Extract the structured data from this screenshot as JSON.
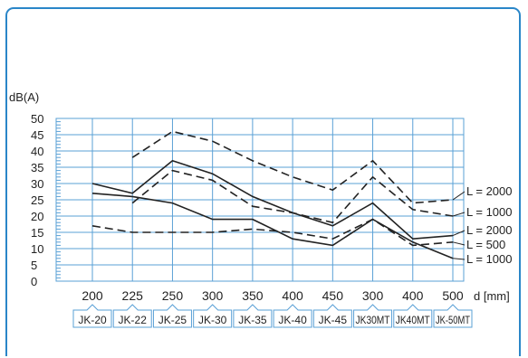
{
  "chart_data": {
    "type": "line",
    "ylabel": "dB(A)",
    "xlabel": "d [mm]",
    "ylim": [
      0,
      50
    ],
    "yticks": [
      0,
      5,
      10,
      15,
      20,
      25,
      30,
      35,
      40,
      45,
      50
    ],
    "x": [
      "200",
      "225",
      "250",
      "300",
      "350",
      "400",
      "450",
      "300",
      "400",
      "500"
    ],
    "categories": [
      "JK-20",
      "JK-22",
      "JK-25",
      "JK-30",
      "JK-35",
      "JK-40",
      "JK-45",
      "JK30MT",
      "JK40MT",
      "JK-50MT"
    ],
    "grid": true,
    "series": [
      {
        "name": "L = 2000",
        "style": "dashed",
        "values": [
          null,
          38,
          46,
          43,
          37,
          32,
          28,
          37,
          24,
          25
        ]
      },
      {
        "name": "L = 1000",
        "style": "dashed",
        "values": [
          null,
          24,
          34,
          31,
          23,
          21,
          18,
          32,
          22,
          20
        ]
      },
      {
        "name": "L = 2000",
        "style": "solid",
        "values": [
          30,
          27,
          37,
          33,
          26,
          21,
          17,
          24,
          13,
          14
        ]
      },
      {
        "name": "L = 500",
        "style": "dashed",
        "values": [
          17,
          15,
          15,
          15,
          16,
          15,
          13,
          19,
          11,
          12
        ]
      },
      {
        "name": "L = 1000",
        "style": "solid",
        "values": [
          27,
          26,
          24,
          19,
          19,
          13,
          11,
          19,
          12,
          7
        ]
      }
    ],
    "colors": {
      "line": "#222222",
      "grid": "#5aa0d6",
      "frame": "#2a86c8"
    }
  }
}
